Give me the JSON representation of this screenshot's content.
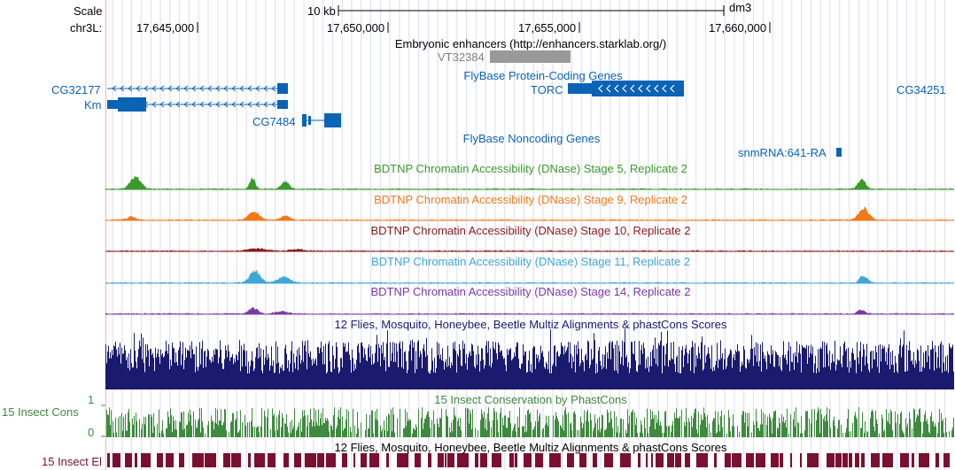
{
  "ruler": {
    "scale_label": "Scale",
    "scale_bar_label": "10 kb",
    "assembly": "dm3",
    "chrom_label": "chr3L:",
    "ticks": [
      {
        "label": "17,645,000",
        "pos": 17645000
      },
      {
        "label": "17,650,000",
        "pos": 17650000
      },
      {
        "label": "17,655,000",
        "pos": 17655000
      },
      {
        "label": "17,660,000",
        "pos": 17660000
      }
    ]
  },
  "tracks": {
    "enhancers": {
      "title": "Embryonic enhancers (http://enhancers.starklab.org/)",
      "item_label": "VT32384",
      "color": "#999999"
    },
    "flybase_coding": {
      "title": "FlyBase Protein-Coding Genes",
      "color": "#0b63b5",
      "genes": [
        {
          "name": "CG32177"
        },
        {
          "name": "Km"
        },
        {
          "name": "CG7484"
        },
        {
          "name": "TORC"
        },
        {
          "name": "CG34251"
        }
      ]
    },
    "flybase_noncoding": {
      "title": "FlyBase Noncoding Genes",
      "color": "#0b63b5",
      "genes": [
        {
          "name": "snmRNA:641-RA"
        }
      ]
    },
    "dnase": [
      {
        "title": "BDTNP Chromatin Accessibility (DNase) Stage 5, Replicate 2",
        "color": "#3a9a2a"
      },
      {
        "title": "BDTNP Chromatin Accessibility (DNase) Stage 9, Replicate 2",
        "color": "#f07a1a"
      },
      {
        "title": "BDTNP Chromatin Accessibility (DNase) Stage 10, Replicate 2",
        "color": "#8b1a1a"
      },
      {
        "title": "BDTNP Chromatin Accessibility (DNase) Stage 11, Replicate 2",
        "color": "#3fa7d6"
      },
      {
        "title": "BDTNP Chromatin Accessibility (DNase) Stage 14, Replicate 2",
        "color": "#7b3aa8"
      }
    ],
    "multiz": {
      "title": "12 Flies, Mosquito, Honeybee, Beetle Multiz Alignments & phastCons Scores",
      "color": "#1a1a6e"
    },
    "phastcons": {
      "title": "15 Insect Conservation by PhastCons",
      "left_label": "15 Insect Cons",
      "axis_max": "1",
      "axis_min": "0",
      "color": "#3e8a3e"
    },
    "elements": {
      "title": "12 Flies, Mosquito, Honeybee, Beetle Multiz Alignments & phastCons Scores",
      "left_label": "15 Insect El",
      "color": "#7a1030"
    }
  }
}
